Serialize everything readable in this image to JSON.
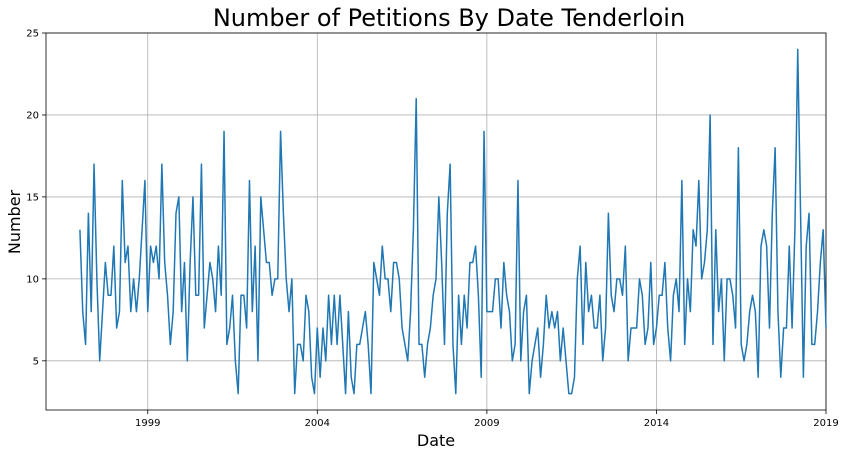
{
  "chart_data": {
    "type": "line",
    "title": "Number of Petitions By Date Tenderloin",
    "xlabel": "Date",
    "ylabel": "Number",
    "xlim": [
      "1996-01-01",
      "2019-01-01"
    ],
    "ylim": [
      2,
      25
    ],
    "x_ticks": [
      "1999",
      "2004",
      "2009",
      "2014",
      "2019"
    ],
    "y_ticks": [
      5,
      10,
      15,
      20,
      25
    ],
    "grid": true,
    "series": [
      {
        "color": "#1f77b4",
        "x": [
          "1997-01",
          "1997-02",
          "1997-03",
          "1997-04",
          "1997-05",
          "1997-06",
          "1997-07",
          "1997-08",
          "1997-09",
          "1997-10",
          "1997-11",
          "1997-12",
          "1998-01",
          "1998-02",
          "1998-03",
          "1998-04",
          "1998-05",
          "1998-06",
          "1998-07",
          "1998-08",
          "1998-09",
          "1998-10",
          "1998-11",
          "1998-12",
          "1999-01",
          "1999-02",
          "1999-03",
          "1999-04",
          "1999-05",
          "1999-06",
          "1999-07",
          "1999-08",
          "1999-09",
          "1999-10",
          "1999-11",
          "1999-12",
          "2000-01",
          "2000-02",
          "2000-03",
          "2000-04",
          "2000-05",
          "2000-06",
          "2000-07",
          "2000-08",
          "2000-09",
          "2000-10",
          "2000-11",
          "2000-12",
          "2001-01",
          "2001-02",
          "2001-03",
          "2001-04",
          "2001-05",
          "2001-06",
          "2001-07",
          "2001-08",
          "2001-09",
          "2001-10",
          "2001-11",
          "2001-12",
          "2002-01",
          "2002-02",
          "2002-03",
          "2002-04",
          "2002-05",
          "2002-06",
          "2002-07",
          "2002-08",
          "2002-09",
          "2002-10",
          "2002-11",
          "2002-12",
          "2003-01",
          "2003-02",
          "2003-03",
          "2003-04",
          "2003-05",
          "2003-06",
          "2003-07",
          "2003-08",
          "2003-09",
          "2003-10",
          "2003-11",
          "2003-12",
          "2004-01",
          "2004-02",
          "2004-03",
          "2004-04",
          "2004-05",
          "2004-06",
          "2004-07",
          "2004-08",
          "2004-09",
          "2004-10",
          "2004-11",
          "2004-12",
          "2005-01",
          "2005-02",
          "2005-03",
          "2005-04",
          "2005-05",
          "2005-06",
          "2005-07",
          "2005-08",
          "2005-09",
          "2005-10",
          "2005-11",
          "2005-12",
          "2006-01",
          "2006-02",
          "2006-03",
          "2006-04",
          "2006-05",
          "2006-06",
          "2006-07",
          "2006-08",
          "2006-09",
          "2006-10",
          "2006-11",
          "2006-12",
          "2007-01",
          "2007-02",
          "2007-03",
          "2007-04",
          "2007-05",
          "2007-06",
          "2007-07",
          "2007-08",
          "2007-09",
          "2007-10",
          "2007-11",
          "2007-12",
          "2008-01",
          "2008-02",
          "2008-03",
          "2008-04",
          "2008-05",
          "2008-06",
          "2008-07",
          "2008-08",
          "2008-09",
          "2008-10",
          "2008-11",
          "2008-12",
          "2009-01",
          "2009-02",
          "2009-03",
          "2009-04",
          "2009-05",
          "2009-06",
          "2009-07",
          "2009-08",
          "2009-09",
          "2009-10",
          "2009-11",
          "2009-12",
          "2010-01",
          "2010-02",
          "2010-03",
          "2010-04",
          "2010-05",
          "2010-06",
          "2010-07",
          "2010-08",
          "2010-09",
          "2010-10",
          "2010-11",
          "2010-12",
          "2011-01",
          "2011-02",
          "2011-03",
          "2011-04",
          "2011-05",
          "2011-06",
          "2011-07",
          "2011-08",
          "2011-09",
          "2011-10",
          "2011-11",
          "2011-12",
          "2012-01",
          "2012-02",
          "2012-03",
          "2012-04",
          "2012-05",
          "2012-06",
          "2012-07",
          "2012-08",
          "2012-09",
          "2012-10",
          "2012-11",
          "2012-12",
          "2013-01",
          "2013-02",
          "2013-03",
          "2013-04",
          "2013-05",
          "2013-06",
          "2013-07",
          "2013-08",
          "2013-09",
          "2013-10",
          "2013-11",
          "2013-12",
          "2014-01",
          "2014-02",
          "2014-03",
          "2014-04",
          "2014-05",
          "2014-06",
          "2014-07",
          "2014-08",
          "2014-09",
          "2014-10",
          "2014-11",
          "2014-12",
          "2015-01",
          "2015-02",
          "2015-03",
          "2015-04",
          "2015-05",
          "2015-06",
          "2015-07",
          "2015-08",
          "2015-09",
          "2015-10",
          "2015-11",
          "2015-12",
          "2016-01",
          "2016-02",
          "2016-03",
          "2016-04",
          "2016-05",
          "2016-06",
          "2016-07",
          "2016-08",
          "2016-09",
          "2016-10",
          "2016-11",
          "2016-12",
          "2017-01",
          "2017-02",
          "2017-03",
          "2017-04",
          "2017-05",
          "2017-06",
          "2017-07",
          "2017-08",
          "2017-09",
          "2017-10",
          "2017-11",
          "2017-12",
          "2018-01",
          "2018-02",
          "2018-03",
          "2018-04",
          "2018-05",
          "2018-06",
          "2018-07",
          "2018-08",
          "2018-09",
          "2018-10",
          "2018-11",
          "2018-12",
          "2019-01"
        ],
        "values": [
          13,
          8,
          6,
          14,
          8,
          17,
          10,
          5,
          8,
          11,
          9,
          9,
          12,
          7,
          8,
          16,
          11,
          12,
          8,
          10,
          8,
          10,
          13,
          16,
          8,
          12,
          11,
          12,
          10,
          17,
          11,
          9,
          6,
          8,
          14,
          15,
          8,
          11,
          5,
          11,
          15,
          9,
          9,
          17,
          7,
          9,
          11,
          10,
          8,
          12,
          9,
          19,
          6,
          7,
          9,
          5,
          3,
          9,
          9,
          7,
          16,
          8,
          12,
          5,
          15,
          13,
          11,
          11,
          9,
          10,
          10,
          19,
          14,
          10,
          8,
          10,
          3,
          6,
          6,
          5,
          9,
          8,
          4,
          3,
          7,
          4,
          7,
          5,
          9,
          6,
          9,
          6,
          9,
          6,
          3,
          8,
          4,
          3,
          6,
          6,
          7,
          8,
          6,
          3,
          11,
          10,
          9,
          12,
          10,
          10,
          8,
          11,
          11,
          10,
          7,
          6,
          5,
          8,
          13,
          21,
          6,
          6,
          4,
          6,
          7,
          9,
          10,
          15,
          11,
          6,
          14,
          17,
          6,
          3,
          9,
          6,
          9,
          7,
          11,
          11,
          12,
          9,
          4,
          19,
          8,
          8,
          8,
          10,
          10,
          7,
          11,
          9,
          8,
          5,
          6,
          16,
          5,
          8,
          9,
          3,
          5,
          6,
          7,
          4,
          6,
          9,
          7,
          8,
          7,
          8,
          5,
          7,
          5,
          3,
          3,
          4,
          10,
          12,
          6,
          11,
          8,
          9,
          7,
          7,
          9,
          5,
          7,
          14,
          9,
          8,
          10,
          10,
          9,
          12,
          5,
          7,
          7,
          7,
          10,
          9,
          6,
          7,
          11,
          6,
          7,
          9,
          9,
          11,
          7,
          5,
          9,
          10,
          8,
          16,
          6,
          10,
          8,
          13,
          12,
          16,
          10,
          11,
          13,
          20,
          6,
          13,
          8,
          10,
          5,
          10,
          10,
          9,
          7,
          18,
          6,
          5,
          6,
          8,
          9,
          8,
          4,
          12,
          13,
          12,
          7,
          14,
          18,
          8,
          4,
          7,
          7,
          12,
          7,
          13,
          24,
          14,
          4,
          12,
          14,
          6,
          6,
          8,
          11,
          13,
          7
        ]
      }
    ]
  }
}
